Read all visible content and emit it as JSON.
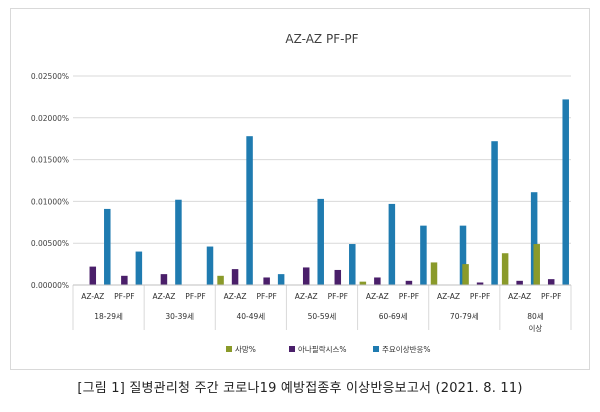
{
  "caption": "[그림 1] 질병관리청 주간 코로나19 예방접종후 이상반응보고서 (2021. 8. 11)",
  "chart_data": {
    "type": "bar",
    "title": "AZ-AZ  PF-PF",
    "ylim": [
      0,
      0.025
    ],
    "yticks": [
      "0.00000%",
      "0.00500%",
      "0.01000%",
      "0.01500%",
      "0.02000%",
      "0.02500%"
    ],
    "grid": true,
    "legend_position": "bottom",
    "groups": [
      {
        "label": [
          "18-29세"
        ],
        "subcategories": [
          "AZ-AZ",
          "PF-PF"
        ],
        "values": {
          "사망%": [
            0,
            0
          ],
          "아나필락시스%": [
            0.0022,
            0.0011
          ],
          "주요이상반응%": [
            0.0091,
            0.004
          ]
        }
      },
      {
        "label": [
          "30-39세"
        ],
        "subcategories": [
          "AZ-AZ",
          "PF-PF"
        ],
        "values": {
          "사망%": [
            0,
            0
          ],
          "아나필락시스%": [
            0.0013,
            0
          ],
          "주요이상반응%": [
            0.0102,
            0.0046
          ]
        }
      },
      {
        "label": [
          "40-49세"
        ],
        "subcategories": [
          "AZ-AZ",
          "PF-PF"
        ],
        "values": {
          "사망%": [
            0.0011,
            0
          ],
          "아나필락시스%": [
            0.0019,
            0.0009
          ],
          "주요이상반응%": [
            0.0178,
            0.0013
          ]
        }
      },
      {
        "label": [
          "50-59세"
        ],
        "subcategories": [
          "AZ-AZ",
          "PF-PF"
        ],
        "values": {
          "사망%": [
            0,
            0
          ],
          "아나필락시스%": [
            0.0021,
            0.0018
          ],
          "주요이상반응%": [
            0.0103,
            0.0049
          ]
        }
      },
      {
        "label": [
          "60-69세"
        ],
        "subcategories": [
          "AZ-AZ",
          "PF-PF"
        ],
        "values": {
          "사망%": [
            0.0004,
            0
          ],
          "아나필락시스%": [
            0.0009,
            0.0005
          ],
          "주요이상반응%": [
            0.0097,
            0.0071
          ]
        }
      },
      {
        "label": [
          "70-79세"
        ],
        "subcategories": [
          "AZ-AZ",
          "PF-PF"
        ],
        "values": {
          "사망%": [
            0.0027,
            0.0025
          ],
          "아나필락시스%": [
            0,
            0.0003
          ],
          "주요이상반응%": [
            0.0071,
            0.0172
          ]
        }
      },
      {
        "label": [
          "80세",
          "이상"
        ],
        "subcategories": [
          "AZ-AZ",
          "PF-PF"
        ],
        "values": {
          "사망%": [
            0.0038,
            0.0049
          ],
          "아나필락시스%": [
            0.0005,
            0.0007
          ],
          "주요이상반응%": [
            0.0111,
            0.0222
          ]
        }
      }
    ],
    "series": [
      {
        "name": "사망%",
        "color": "#8a9a2a"
      },
      {
        "name": "아나필락시스%",
        "color": "#4a1f6a"
      },
      {
        "name": "주요이상반응%",
        "color": "#1f7bb0"
      }
    ]
  }
}
